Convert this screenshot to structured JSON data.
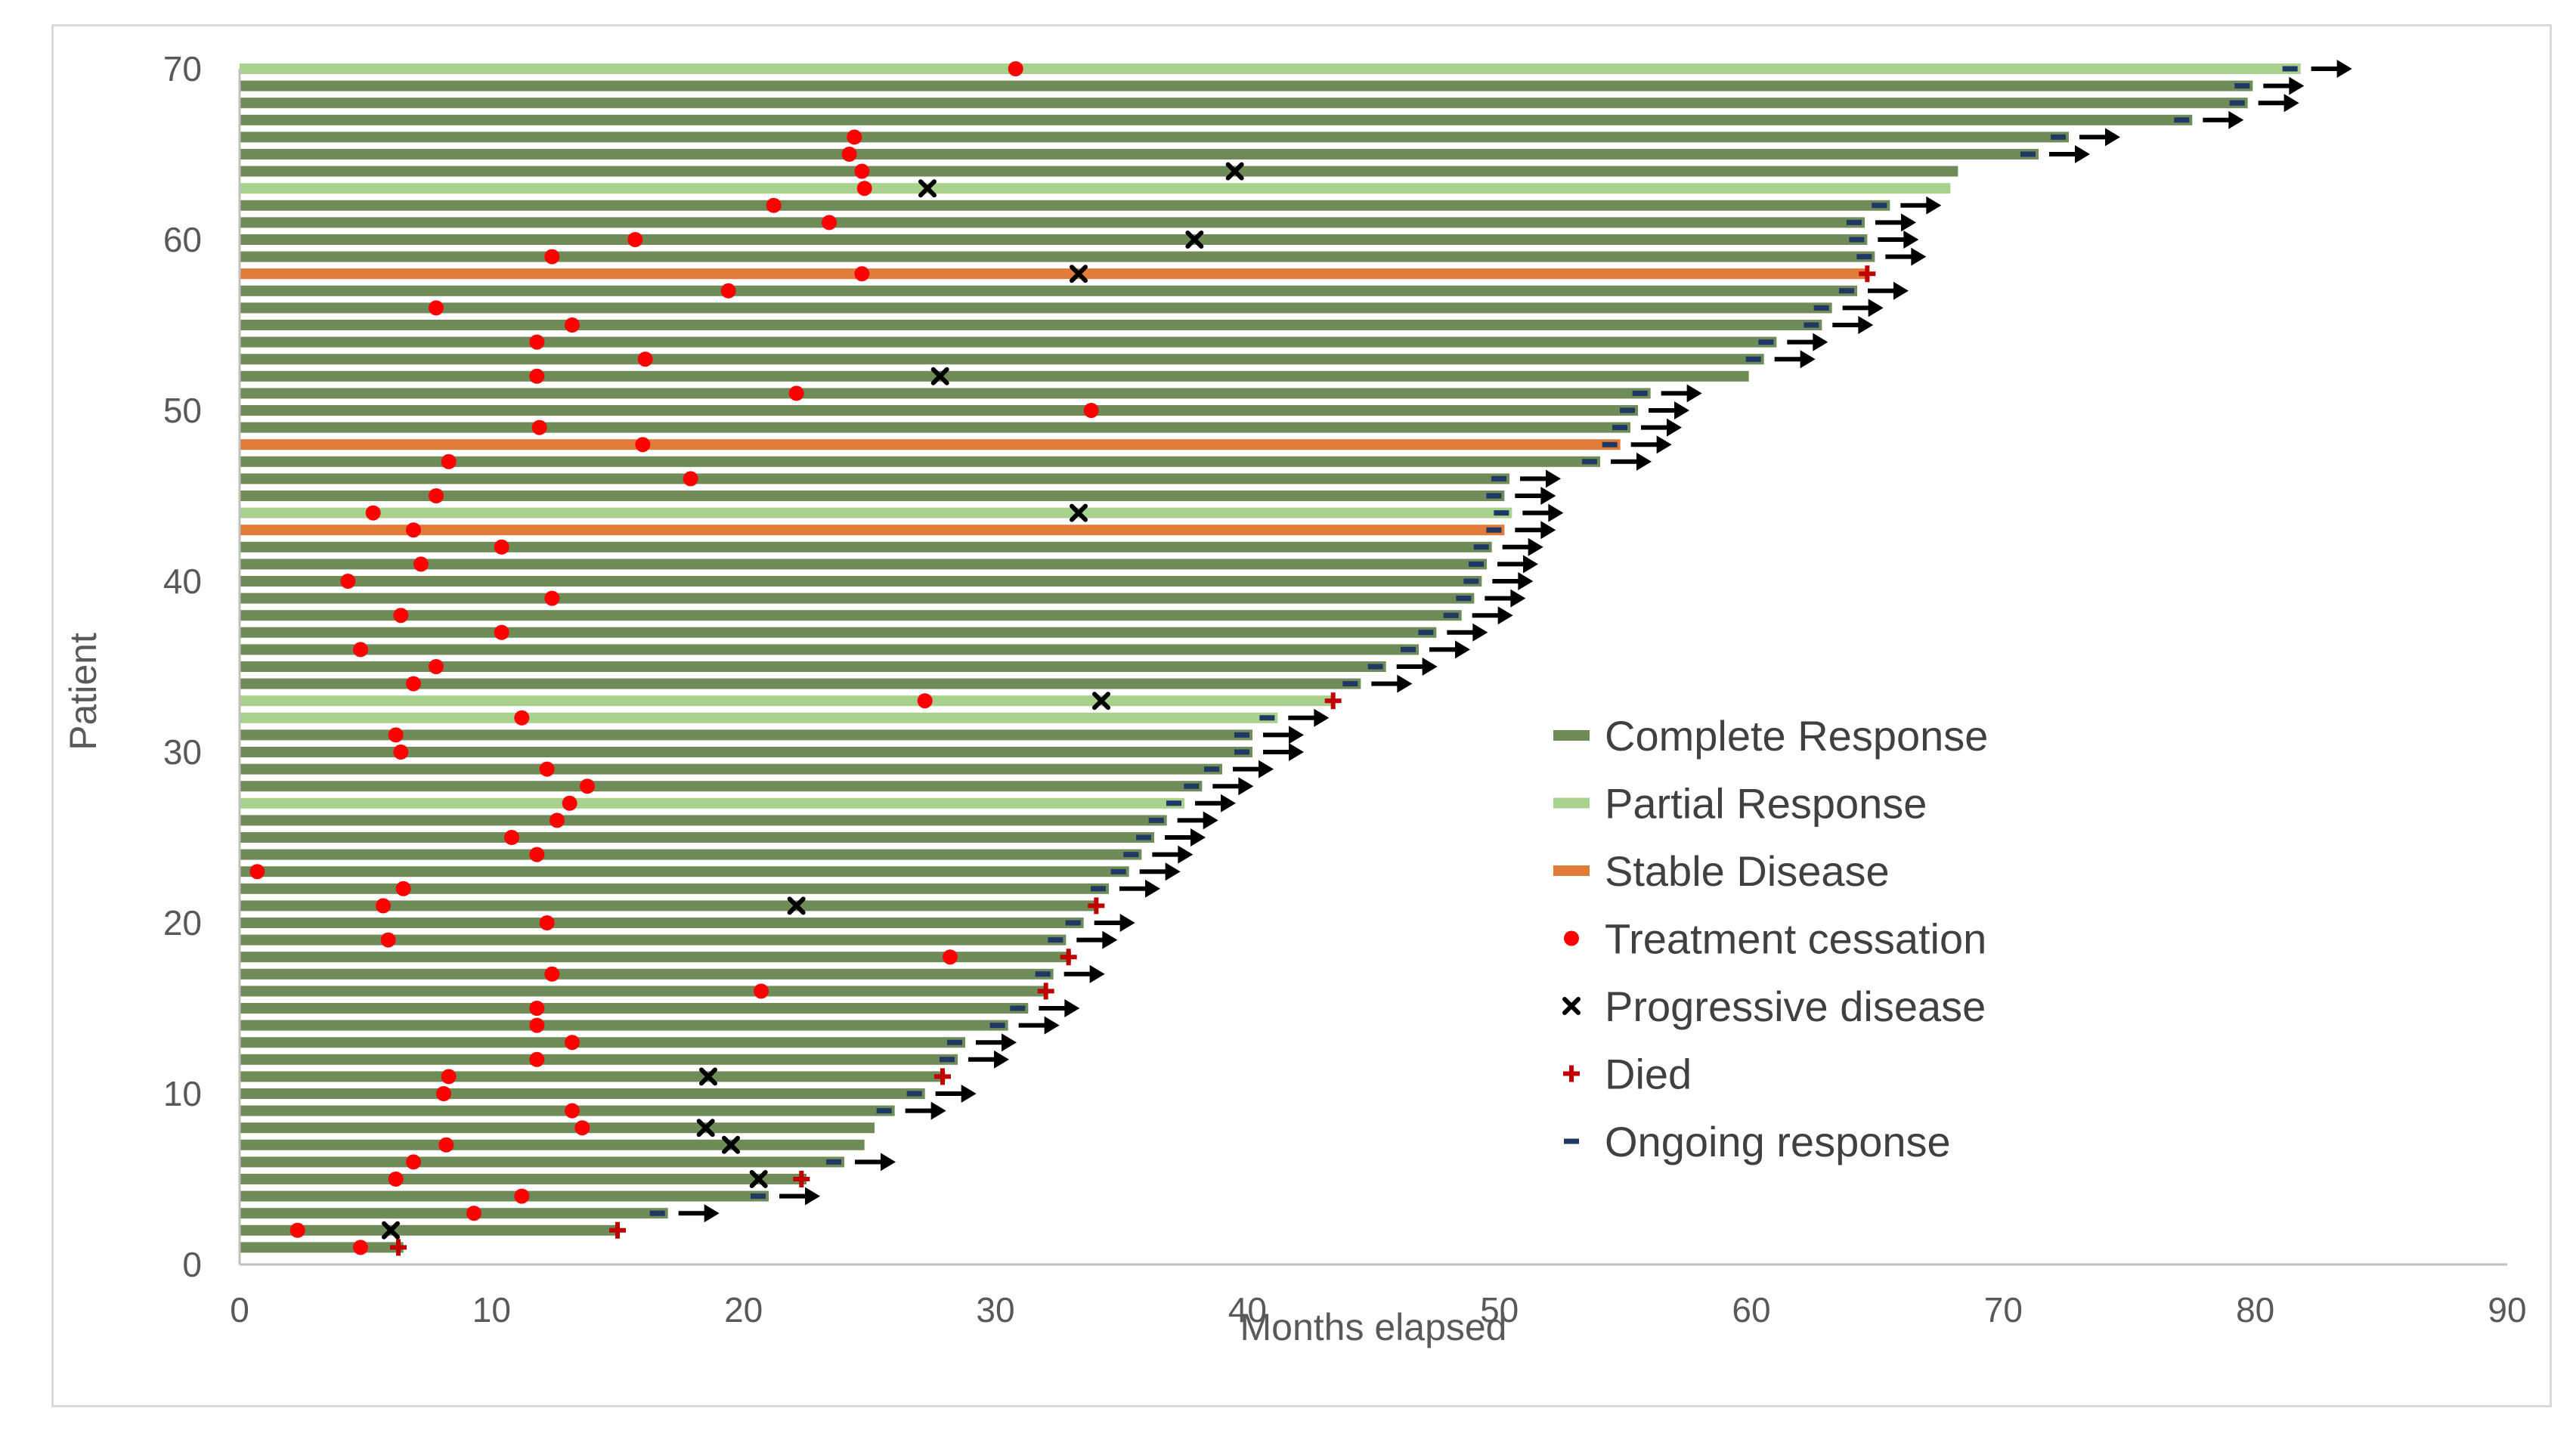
{
  "chart_data": {
    "type": "swimmer",
    "xlabel": "Months elapsed",
    "ylabel": "Patient",
    "xlim": [
      0,
      90
    ],
    "ylim": [
      0,
      70
    ],
    "xticks": [
      0,
      10,
      20,
      30,
      40,
      50,
      60,
      70,
      80,
      90
    ],
    "yticks": [
      0,
      10,
      20,
      30,
      40,
      50,
      60,
      70
    ],
    "grid": false,
    "legend_position": "right",
    "legend": [
      {
        "key": "complete",
        "label": "Complete Response",
        "symbol": "bar",
        "color": "#6E8B58"
      },
      {
        "key": "partial",
        "label": "Partial Response",
        "symbol": "bar",
        "color": "#A9D18E"
      },
      {
        "key": "stable",
        "label": "Stable Disease",
        "symbol": "bar",
        "color": "#E07B39"
      },
      {
        "key": "cessation",
        "label": "Treatment cessation",
        "symbol": "dot",
        "color": "#FF0000"
      },
      {
        "key": "progressive",
        "label": "Progressive disease",
        "symbol": "x",
        "color": "#000000"
      },
      {
        "key": "died",
        "label": "Died",
        "symbol": "plus",
        "color": "#C00000"
      },
      {
        "key": "ongoing",
        "label": "Ongoing response",
        "symbol": "dash",
        "color": "#1F3864"
      }
    ],
    "patients": [
      {
        "id": 1,
        "end": 6.5,
        "status": "complete",
        "cessation": 4.8,
        "died": 6.3
      },
      {
        "id": 2,
        "end": 15,
        "status": "complete",
        "cessation": 2.3,
        "progression": 6,
        "died": 15
      },
      {
        "id": 3,
        "end": 17,
        "status": "complete",
        "cessation": 9.3,
        "ongoing": true
      },
      {
        "id": 4,
        "end": 21,
        "status": "complete",
        "cessation": 11.2,
        "ongoing": true
      },
      {
        "id": 5,
        "end": 22.5,
        "status": "complete",
        "cessation": 6.2,
        "progression": 20.6,
        "died": 22.3
      },
      {
        "id": 6,
        "end": 24,
        "status": "complete",
        "cessation": 6.9,
        "ongoing": true
      },
      {
        "id": 7,
        "end": 24.8,
        "status": "complete",
        "cessation": 8.2,
        "progression": 19.5
      },
      {
        "id": 8,
        "end": 25.2,
        "status": "complete",
        "cessation": 13.6,
        "progression": 18.5
      },
      {
        "id": 9,
        "end": 26,
        "status": "complete",
        "cessation": 13.2,
        "ongoing": true
      },
      {
        "id": 10,
        "end": 27.2,
        "status": "complete",
        "cessation": 8.1,
        "ongoing": true
      },
      {
        "id": 11,
        "end": 28,
        "status": "complete",
        "cessation": 8.3,
        "progression": 18.6,
        "died": 27.9
      },
      {
        "id": 12,
        "end": 28.5,
        "status": "complete",
        "cessation": 11.8,
        "ongoing": true
      },
      {
        "id": 13,
        "end": 28.8,
        "status": "complete",
        "cessation": 13.2,
        "ongoing": true
      },
      {
        "id": 14,
        "end": 30.5,
        "status": "complete",
        "cessation": 11.8,
        "ongoing": true
      },
      {
        "id": 15,
        "end": 31.3,
        "status": "complete",
        "cessation": 11.8,
        "ongoing": true
      },
      {
        "id": 16,
        "end": 32,
        "status": "complete",
        "cessation": 20.7,
        "died": 32
      },
      {
        "id": 17,
        "end": 32.3,
        "status": "complete",
        "cessation": 12.4,
        "ongoing": true
      },
      {
        "id": 18,
        "end": 33,
        "status": "complete",
        "cessation": 28.2,
        "died": 32.9
      },
      {
        "id": 19,
        "end": 32.8,
        "status": "complete",
        "cessation": 5.9,
        "ongoing": true
      },
      {
        "id": 20,
        "end": 33.5,
        "status": "complete",
        "cessation": 12.2,
        "ongoing": true
      },
      {
        "id": 21,
        "end": 34,
        "status": "complete",
        "cessation": 5.7,
        "progression": 22.1,
        "died": 34
      },
      {
        "id": 22,
        "end": 34.5,
        "status": "complete",
        "cessation": 6.5,
        "ongoing": true
      },
      {
        "id": 23,
        "end": 35.3,
        "status": "complete",
        "cessation": 0.7,
        "ongoing": true
      },
      {
        "id": 24,
        "end": 35.8,
        "status": "complete",
        "cessation": 11.8,
        "ongoing": true
      },
      {
        "id": 25,
        "end": 36.3,
        "status": "complete",
        "cessation": 10.8,
        "ongoing": true
      },
      {
        "id": 26,
        "end": 36.8,
        "status": "complete",
        "cessation": 12.6,
        "ongoing": true
      },
      {
        "id": 27,
        "end": 37.5,
        "status": "partial",
        "cessation": 13.1,
        "ongoing": true
      },
      {
        "id": 28,
        "end": 38.2,
        "status": "complete",
        "cessation": 13.8,
        "ongoing": true
      },
      {
        "id": 29,
        "end": 39,
        "status": "complete",
        "cessation": 12.2,
        "ongoing": true
      },
      {
        "id": 30,
        "end": 40.2,
        "status": "complete",
        "cessation": 6.4,
        "ongoing": true
      },
      {
        "id": 31,
        "end": 40.2,
        "status": "complete",
        "cessation": 6.2,
        "ongoing": true
      },
      {
        "id": 32,
        "end": 41.2,
        "status": "partial",
        "cessation": 11.2,
        "ongoing": true
      },
      {
        "id": 33,
        "end": 43.4,
        "status": "partial",
        "cessation": 27.2,
        "progression": 34.2,
        "died": 43.4
      },
      {
        "id": 34,
        "end": 44.5,
        "status": "complete",
        "cessation": 6.9,
        "ongoing": true
      },
      {
        "id": 35,
        "end": 45.5,
        "status": "complete",
        "cessation": 7.8,
        "ongoing": true
      },
      {
        "id": 36,
        "end": 46.8,
        "status": "complete",
        "cessation": 4.8,
        "ongoing": true
      },
      {
        "id": 37,
        "end": 47.5,
        "status": "complete",
        "cessation": 10.4,
        "ongoing": true
      },
      {
        "id": 38,
        "end": 48.5,
        "status": "complete",
        "cessation": 6.4,
        "ongoing": true
      },
      {
        "id": 39,
        "end": 49,
        "status": "complete",
        "cessation": 12.4,
        "ongoing": true
      },
      {
        "id": 40,
        "end": 49.3,
        "status": "complete",
        "cessation": 4.3,
        "ongoing": true
      },
      {
        "id": 41,
        "end": 49.5,
        "status": "complete",
        "cessation": 7.2,
        "ongoing": true
      },
      {
        "id": 42,
        "end": 49.7,
        "status": "complete",
        "cessation": 10.4,
        "ongoing": true
      },
      {
        "id": 43,
        "end": 50.2,
        "status": "stable",
        "cessation": 6.9,
        "ongoing": true
      },
      {
        "id": 44,
        "end": 50.5,
        "status": "partial",
        "cessation": 5.3,
        "progression": 33.3,
        "ongoing": true
      },
      {
        "id": 45,
        "end": 50.2,
        "status": "complete",
        "cessation": 7.8,
        "ongoing": true
      },
      {
        "id": 46,
        "end": 50.4,
        "status": "complete",
        "cessation": 17.9,
        "ongoing": true
      },
      {
        "id": 47,
        "end": 54,
        "status": "complete",
        "cessation": 8.3,
        "ongoing": true
      },
      {
        "id": 48,
        "end": 54.8,
        "status": "stable",
        "cessation": 16,
        "ongoing": true
      },
      {
        "id": 49,
        "end": 55.2,
        "status": "complete",
        "cessation": 11.9,
        "ongoing": true
      },
      {
        "id": 50,
        "end": 55.5,
        "status": "complete",
        "cessation": 33.8,
        "ongoing": true
      },
      {
        "id": 51,
        "end": 56,
        "status": "complete",
        "cessation": 22.1,
        "ongoing": true
      },
      {
        "id": 52,
        "end": 59.9,
        "status": "complete",
        "cessation": 11.8,
        "progression": 27.8
      },
      {
        "id": 53,
        "end": 60.5,
        "status": "complete",
        "cessation": 16.1,
        "ongoing": true
      },
      {
        "id": 54,
        "end": 61,
        "status": "complete",
        "cessation": 11.8,
        "ongoing": true
      },
      {
        "id": 55,
        "end": 62.8,
        "status": "complete",
        "cessation": 13.2,
        "ongoing": true
      },
      {
        "id": 56,
        "end": 63.2,
        "status": "complete",
        "cessation": 7.8,
        "ongoing": true
      },
      {
        "id": 57,
        "end": 64.2,
        "status": "complete",
        "cessation": 19.4,
        "ongoing": true
      },
      {
        "id": 58,
        "end": 64.6,
        "status": "stable",
        "cessation": 24.7,
        "progression": 33.3,
        "died": 64.6
      },
      {
        "id": 59,
        "end": 64.9,
        "status": "complete",
        "cessation": 12.4,
        "ongoing": true
      },
      {
        "id": 60,
        "end": 64.6,
        "status": "complete",
        "cessation": 15.7,
        "progression": 37.9,
        "ongoing": true
      },
      {
        "id": 61,
        "end": 64.5,
        "status": "complete",
        "cessation": 23.4,
        "ongoing": true
      },
      {
        "id": 62,
        "end": 65.5,
        "status": "complete",
        "cessation": 21.2,
        "ongoing": true
      },
      {
        "id": 63,
        "end": 67.9,
        "status": "partial",
        "cessation": 24.8,
        "progression": 27.3
      },
      {
        "id": 64,
        "end": 68.2,
        "status": "complete",
        "cessation": 24.7,
        "progression": 39.5
      },
      {
        "id": 65,
        "end": 71.4,
        "status": "complete",
        "cessation": 24.2,
        "ongoing": true
      },
      {
        "id": 66,
        "end": 72.6,
        "status": "complete",
        "cessation": 24.4,
        "ongoing": true
      },
      {
        "id": 67,
        "end": 77.5,
        "status": "complete",
        "ongoing": true
      },
      {
        "id": 68,
        "end": 79.7,
        "status": "complete",
        "ongoing": true
      },
      {
        "id": 69,
        "end": 79.9,
        "status": "complete",
        "ongoing": true
      },
      {
        "id": 70,
        "end": 81.8,
        "status": "partial",
        "cessation": 30.8,
        "ongoing": true
      }
    ]
  }
}
